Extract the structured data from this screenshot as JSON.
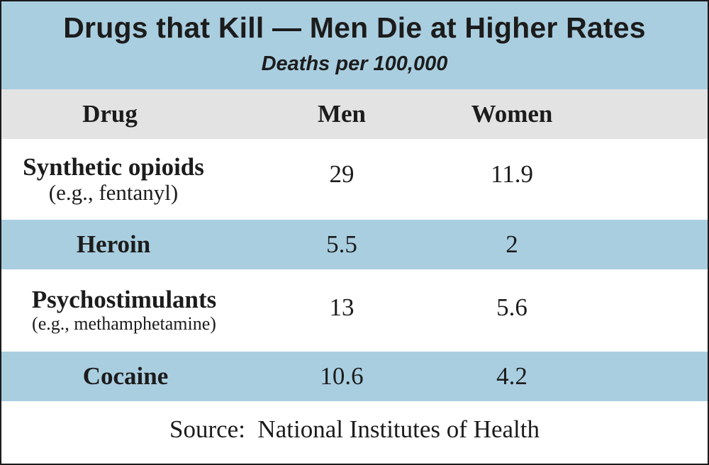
{
  "chart_data": {
    "type": "table",
    "title": "Drugs that Kill — Men Die at Higher Rates",
    "subtitle": "Deaths per 100,000",
    "columns": [
      "Drug",
      "Men",
      "Women"
    ],
    "rows": [
      {
        "drug": "Synthetic opioids",
        "note": "(e.g., fentanyl)",
        "men": "29",
        "women": "11.9"
      },
      {
        "drug": "Heroin",
        "note": "",
        "men": "5.5",
        "women": "2"
      },
      {
        "drug": "Psychostimulants",
        "note": "(e.g., methamphetamine)",
        "men": "13",
        "women": "5.6"
      },
      {
        "drug": "Cocaine",
        "note": "",
        "men": "10.6",
        "women": "4.2"
      }
    ],
    "source": "Source:  National Institutes of Health"
  },
  "colors": {
    "header_band": "#a9cee0",
    "column_header_band": "#e3e3e3",
    "stripe": "#a9cee0",
    "text": "#1c1c1c"
  }
}
